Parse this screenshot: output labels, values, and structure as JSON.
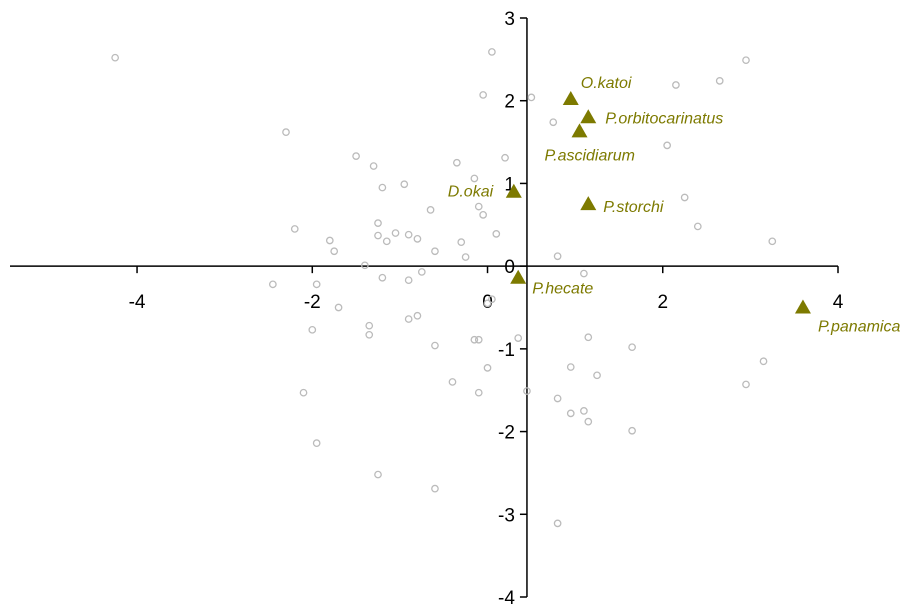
{
  "chart_data": {
    "type": "scatter",
    "title": "",
    "xlabel": "",
    "ylabel": "",
    "xlim": [
      -5.45,
      4.0
    ],
    "ylim": [
      -4.0,
      3.0
    ],
    "x_ticks": [
      -4,
      -2,
      0,
      2,
      4
    ],
    "x_tick_labels": [
      "-4",
      "-2",
      "0",
      "2",
      "4"
    ],
    "y_ticks": [
      -4,
      -3,
      -2,
      -1,
      0,
      1,
      2,
      3
    ],
    "y_tick_labels": [
      "-4",
      "-3",
      "-2",
      "-1",
      "0",
      "1",
      "2",
      "3"
    ],
    "grid": false,
    "colors": {
      "background_points": "#bbbbbb",
      "species": "#7d7a00",
      "axis": "#000000"
    },
    "series": [
      {
        "marker": "open-circle",
        "points": [
          [
            -4.25,
            2.52
          ],
          [
            0.05,
            2.59
          ],
          [
            -0.05,
            2.07
          ],
          [
            0.5,
            2.04
          ],
          [
            -2.3,
            1.62
          ],
          [
            -1.5,
            1.33
          ],
          [
            -1.3,
            1.21
          ],
          [
            -1.2,
            0.95
          ],
          [
            -0.95,
            0.99
          ],
          [
            -0.35,
            1.25
          ],
          [
            -0.15,
            1.06
          ],
          [
            0.2,
            1.31
          ],
          [
            0.75,
            1.74
          ],
          [
            2.15,
            2.19
          ],
          [
            2.65,
            2.24
          ],
          [
            2.95,
            2.49
          ],
          [
            2.05,
            1.46
          ],
          [
            2.25,
            0.83
          ],
          [
            2.4,
            0.48
          ],
          [
            3.25,
            0.3
          ],
          [
            -2.2,
            0.45
          ],
          [
            -1.8,
            0.31
          ],
          [
            -1.75,
            0.18
          ],
          [
            -1.25,
            0.52
          ],
          [
            -1.25,
            0.37
          ],
          [
            -1.15,
            0.3
          ],
          [
            -1.05,
            0.4
          ],
          [
            -0.9,
            0.38
          ],
          [
            -0.8,
            0.33
          ],
          [
            -0.65,
            0.68
          ],
          [
            -0.6,
            0.18
          ],
          [
            -0.3,
            0.29
          ],
          [
            -0.1,
            0.72
          ],
          [
            -0.05,
            0.62
          ],
          [
            0.1,
            0.39
          ],
          [
            -0.25,
            0.11
          ],
          [
            -1.4,
            0.01
          ],
          [
            -1.2,
            -0.14
          ],
          [
            -0.9,
            -0.17
          ],
          [
            -0.75,
            -0.07
          ],
          [
            0.8,
            0.12
          ],
          [
            1.1,
            -0.09
          ],
          [
            -2.45,
            -0.22
          ],
          [
            -1.95,
            -0.22
          ],
          [
            -1.7,
            -0.5
          ],
          [
            -1.35,
            -0.72
          ],
          [
            -1.35,
            -0.83
          ],
          [
            -0.9,
            -0.64
          ],
          [
            -0.8,
            -0.6
          ],
          [
            0.0,
            -0.45
          ],
          [
            0.05,
            -0.4
          ],
          [
            -2.0,
            -0.77
          ],
          [
            -2.1,
            -1.53
          ],
          [
            -1.95,
            -2.14
          ],
          [
            -0.6,
            -0.96
          ],
          [
            -0.15,
            -0.89
          ],
          [
            -0.1,
            -0.89
          ],
          [
            0.0,
            -1.23
          ],
          [
            0.35,
            -0.87
          ],
          [
            -0.4,
            -1.4
          ],
          [
            -0.1,
            -1.53
          ],
          [
            0.45,
            -1.51
          ],
          [
            1.15,
            -0.86
          ],
          [
            1.65,
            -0.98
          ],
          [
            0.95,
            -1.22
          ],
          [
            1.25,
            -1.32
          ],
          [
            0.8,
            -1.6
          ],
          [
            0.95,
            -1.78
          ],
          [
            1.1,
            -1.75
          ],
          [
            1.15,
            -1.88
          ],
          [
            1.65,
            -1.99
          ],
          [
            3.15,
            -1.15
          ],
          [
            2.95,
            -1.43
          ],
          [
            -1.25,
            -2.52
          ],
          [
            -0.6,
            -2.69
          ],
          [
            0.8,
            -3.11
          ]
        ]
      },
      {
        "marker": "filled-triangle",
        "points": [
          {
            "label": "O.katoi",
            "x": 0.95,
            "y": 2.02
          },
          {
            "label": "P.orbitocarinatus",
            "x": 1.15,
            "y": 1.8
          },
          {
            "label": "P.ascidiarum",
            "x": 1.05,
            "y": 1.63
          },
          {
            "label": "D.okai",
            "x": 0.3,
            "y": 0.9
          },
          {
            "label": "P.storchi",
            "x": 1.15,
            "y": 0.75
          },
          {
            "label": "P.hecate",
            "x": 0.35,
            "y": -0.14
          },
          {
            "label": "P.panamica",
            "x": 3.6,
            "y": -0.5
          }
        ]
      }
    ]
  }
}
